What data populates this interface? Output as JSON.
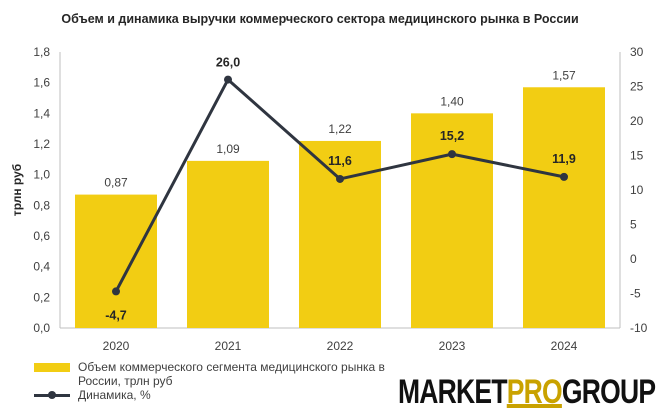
{
  "chart_data": {
    "type": "bar+line",
    "title": "Объем и динамика выручки коммерческого сектора медицинского рынка в России",
    "categories": [
      "2020",
      "2021",
      "2022",
      "2023",
      "2024"
    ],
    "series": [
      {
        "name": "Объем коммерческого сегмента медицинского рынка в России, трлн руб",
        "type": "bar",
        "axis": "left",
        "values": [
          0.87,
          1.09,
          1.22,
          1.4,
          1.57
        ],
        "labels": [
          "0,87",
          "1,09",
          "1,22",
          "1,40",
          "1,57"
        ],
        "color": "#f2cd13"
      },
      {
        "name": "Динамика, %",
        "type": "line",
        "axis": "right",
        "values": [
          -4.7,
          26.0,
          11.6,
          15.2,
          11.9
        ],
        "labels": [
          "-4,7",
          "26,0",
          "11,6",
          "15,2",
          "11,9"
        ],
        "color": "#2f3540"
      }
    ],
    "y_left": {
      "label": "трлн руб",
      "min": 0,
      "max": 1.8,
      "ticks": [
        "0,0",
        "0,2",
        "0,4",
        "0,6",
        "0,8",
        "1,0",
        "1,2",
        "1,4",
        "1,6",
        "1,8"
      ]
    },
    "y_right": {
      "min": -10,
      "max": 30,
      "ticks": [
        "-10",
        "-5",
        "0",
        "5",
        "10",
        "15",
        "20",
        "25",
        "30"
      ]
    },
    "grid": false,
    "legend_position": "bottom-left"
  },
  "logo": {
    "part1": "MARKET",
    "part2": "PRO",
    "part3": "GROUP"
  }
}
